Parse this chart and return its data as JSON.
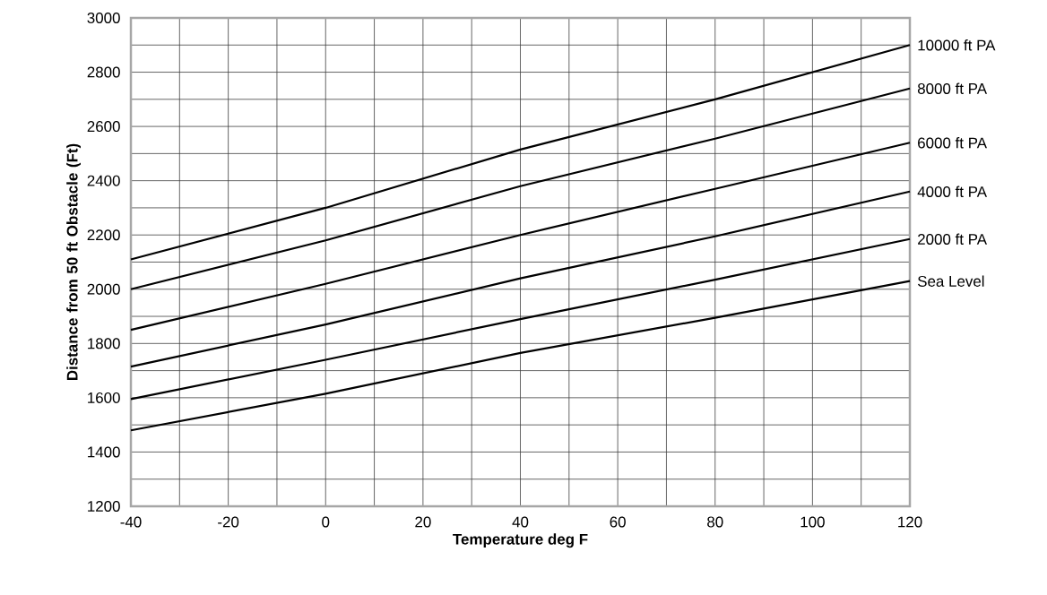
{
  "chart_data": {
    "type": "line",
    "xlabel": "Temperature deg F",
    "ylabel": "Distance from 50 ft Obstacle (Ft)",
    "x": [
      -40,
      0,
      40,
      80,
      120
    ],
    "xlim": [
      -40,
      120
    ],
    "ylim": [
      1200,
      3000
    ],
    "xticks": [
      -40,
      -20,
      0,
      20,
      40,
      60,
      80,
      100,
      120
    ],
    "yticks": [
      1200,
      1400,
      1600,
      1800,
      2000,
      2200,
      2400,
      2600,
      2800,
      3000
    ],
    "grid": true,
    "marker": "none",
    "line_style": "solid",
    "series": [
      {
        "name": "10000 ft PA",
        "color": "#000000",
        "values": [
          2110,
          2300,
          2515,
          2700,
          2900
        ]
      },
      {
        "name": "8000 ft PA",
        "color": "#000000",
        "values": [
          2000,
          2180,
          2380,
          2555,
          2740
        ]
      },
      {
        "name": "6000 ft PA",
        "color": "#000000",
        "values": [
          1850,
          2020,
          2200,
          2370,
          2540
        ]
      },
      {
        "name": "4000 ft PA",
        "color": "#000000",
        "values": [
          1715,
          1870,
          2040,
          2195,
          2360
        ]
      },
      {
        "name": "2000 ft PA",
        "color": "#000000",
        "values": [
          1595,
          1740,
          1890,
          2035,
          2185
        ]
      },
      {
        "name": "Sea Level",
        "color": "#000000",
        "values": [
          1480,
          1615,
          1765,
          1895,
          2030
        ]
      }
    ]
  }
}
